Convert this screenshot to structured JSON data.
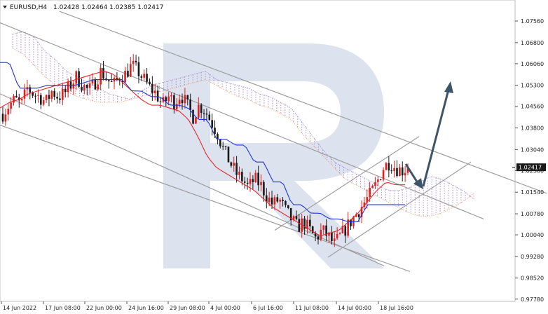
{
  "header": {
    "symbol": "EURUSD,H4",
    "ohlc": "1.02428 1.02464 1.02385 1.02417"
  },
  "colors": {
    "bull": "#e02020",
    "bear": "#1a1a1a",
    "tenkan": "#e8262b",
    "kijun": "#1f36d6",
    "cloud_bull": "#a98cd6",
    "cloud_bear": "#f0a070",
    "trendline": "#9e9e9e",
    "arrow": "#3d5566",
    "price_label_bg": "#1a1a1a",
    "watermark": "#dce3ef"
  },
  "watermark": {
    "icon": "logo-r-icon"
  },
  "chart_data": {
    "type": "candlestick",
    "y_axis": {
      "range": [
        0.977,
        1.083
      ],
      "ticks": [
        "1.07560",
        "1.06800",
        "1.06060",
        "1.05300",
        "1.04560",
        "1.03800",
        "1.03040",
        "1.02300",
        "1.01540",
        "1.00780",
        "1.00040",
        "0.99280",
        "0.98520",
        "0.97780"
      ]
    },
    "x_axis": {
      "ticks": [
        "14 Jun 2022",
        "17 Jun 08:00",
        "22 Jun 00:00",
        "24 Jun 16:00",
        "29 Jun 08:00",
        "4 Jul 00:00",
        "6 Jul 16:00",
        "11 Jul 08:00",
        "14 Jul 00:00",
        "18 Jul 16:00"
      ]
    },
    "last_price": {
      "value": 1.02417,
      "label": "1.02417"
    },
    "candle_path": [
      1.043,
      1.046,
      1.048,
      1.046,
      1.052,
      1.05,
      1.049,
      1.047,
      1.051,
      1.049,
      1.05,
      1.053,
      1.056,
      1.053,
      1.051,
      1.054,
      1.058,
      1.055,
      1.053,
      1.056,
      1.057,
      1.06,
      1.058,
      1.055,
      1.052,
      1.05,
      1.046,
      1.049,
      1.047,
      1.05,
      1.046,
      1.042,
      1.046,
      1.044,
      1.04,
      1.036,
      1.03,
      1.026,
      1.022,
      1.02,
      1.017,
      1.02,
      1.018,
      1.014,
      1.011,
      1.013,
      1.009,
      1.006,
      1.003,
      1.005,
      1.002,
      0.999,
      1.002,
      1.0,
      0.997,
      1.0,
      1.003,
      1.006,
      1.009,
      1.012,
      1.015,
      1.019,
      1.024,
      1.026,
      1.024,
      1.023,
      1.024
    ],
    "tenkan_path": [
      1.045,
      1.047,
      1.048,
      1.05,
      1.051,
      1.052,
      1.053,
      1.054,
      1.055,
      1.056,
      1.057,
      1.058,
      1.057,
      1.054,
      1.051,
      1.048,
      1.046,
      1.046,
      1.045,
      1.044,
      1.041,
      1.035,
      1.028,
      1.024,
      1.022,
      1.02,
      1.018,
      1.016,
      1.013,
      1.01,
      1.008,
      1.006,
      1.004,
      1.002,
      1.0,
      1.001,
      1.002,
      1.005,
      1.008,
      1.012,
      1.016,
      1.019,
      1.018,
      1.018
    ],
    "kijun_path": [
      1.061,
      1.061,
      1.052,
      1.052,
      1.052,
      1.053,
      1.053,
      1.053,
      1.053,
      1.054,
      1.055,
      1.055,
      1.055,
      1.055,
      1.051,
      1.051,
      1.049,
      1.049,
      1.046,
      1.046,
      1.045,
      1.041,
      1.041,
      1.034,
      1.034,
      1.032,
      1.032,
      1.026,
      1.026,
      1.019,
      1.019,
      1.011,
      1.011,
      1.008,
      1.008,
      1.006,
      1.006,
      1.005,
      1.005,
      1.011,
      1.011,
      1.011,
      1.011,
      1.011
    ],
    "cloud_a_path": [
      1.071,
      1.072,
      1.07,
      1.065,
      1.062,
      1.058,
      1.056,
      1.054,
      1.052,
      1.05,
      1.049,
      1.048,
      1.051,
      1.053,
      1.054,
      1.055,
      1.056,
      1.057,
      1.058,
      1.055,
      1.054,
      1.053,
      1.052,
      1.05,
      1.049,
      1.047,
      1.045,
      1.04,
      1.035,
      1.03,
      1.026,
      1.024,
      1.022,
      1.02,
      1.018,
      1.016,
      1.016,
      1.017,
      1.019,
      1.021,
      1.02,
      1.018,
      1.016,
      1.013
    ],
    "cloud_b_path": [
      1.066,
      1.064,
      1.06,
      1.056,
      1.053,
      1.051,
      1.049,
      1.048,
      1.047,
      1.047,
      1.047,
      1.048,
      1.049,
      1.05,
      1.051,
      1.052,
      1.053,
      1.054,
      1.055,
      1.053,
      1.051,
      1.049,
      1.048,
      1.046,
      1.045,
      1.043,
      1.041,
      1.036,
      1.032,
      1.028,
      1.024,
      1.02,
      1.018,
      1.016,
      1.014,
      1.012,
      1.01,
      1.008,
      1.007,
      1.007,
      1.008,
      1.01,
      1.012,
      1.015
    ]
  }
}
